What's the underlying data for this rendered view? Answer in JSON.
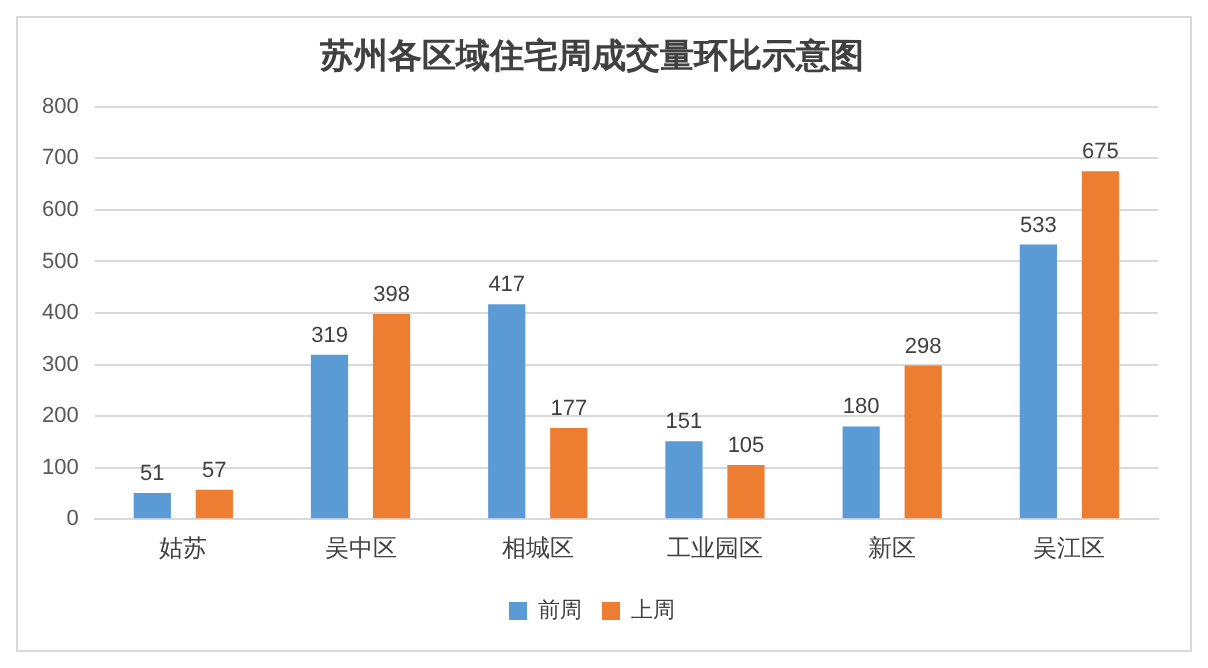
{
  "chart_data": {
    "type": "bar",
    "title": "苏州各区域住宅周成交量环比示意图",
    "categories": [
      "姑苏",
      "吴中区",
      "相城区",
      "工业园区",
      "新区",
      "吴江区"
    ],
    "series": [
      {
        "name": "前周",
        "color": "#5b9bd5",
        "values": [
          51,
          319,
          417,
          151,
          180,
          533
        ]
      },
      {
        "name": "上周",
        "color": "#ed7d31",
        "values": [
          57,
          398,
          177,
          105,
          298,
          675
        ]
      }
    ],
    "ylim": [
      0,
      800
    ],
    "yticks": [
      0,
      100,
      200,
      300,
      400,
      500,
      600,
      700,
      800
    ],
    "grid": "y",
    "legend": "bottom",
    "data_labels": true
  }
}
